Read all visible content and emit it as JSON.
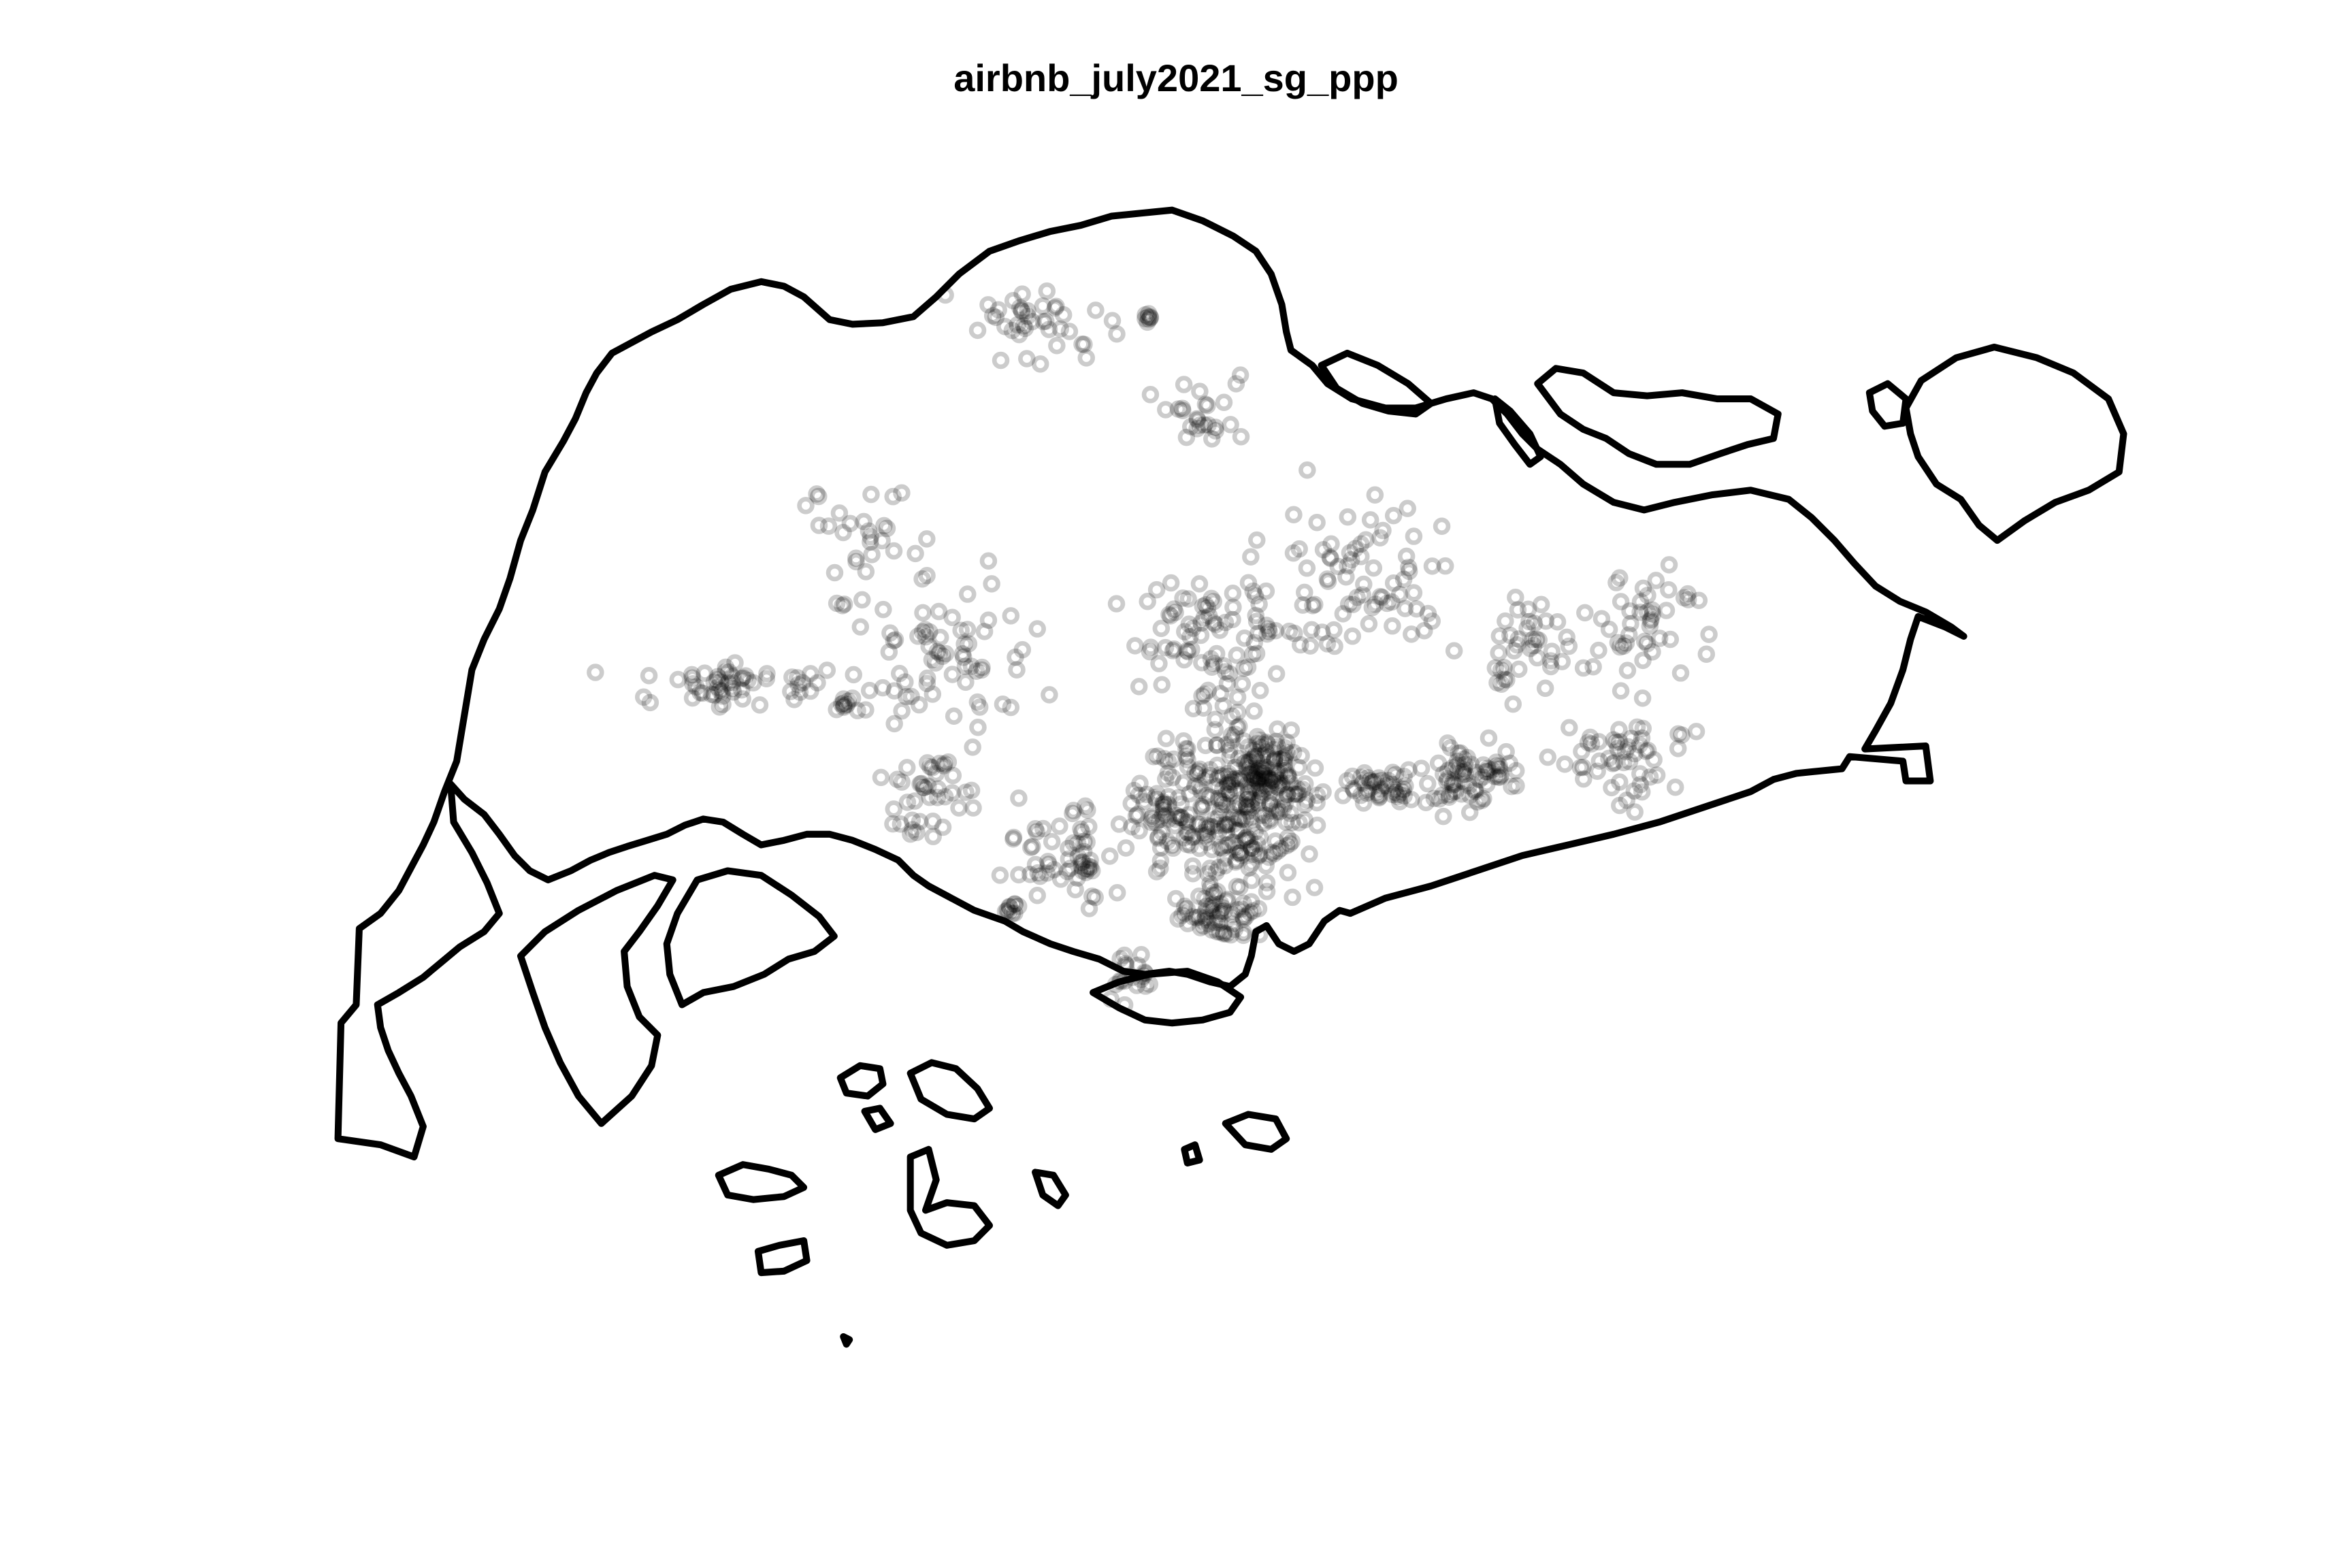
{
  "plot": {
    "title": "airbnb_july2021_sg_ppp"
  },
  "style": {
    "point_color": "#000000",
    "point_opacity": 0.2,
    "outline_color": "#000000",
    "background": "#ffffff"
  },
  "map": {
    "type": "point-pattern",
    "marker": "open-circle",
    "description_visible": false
  }
}
